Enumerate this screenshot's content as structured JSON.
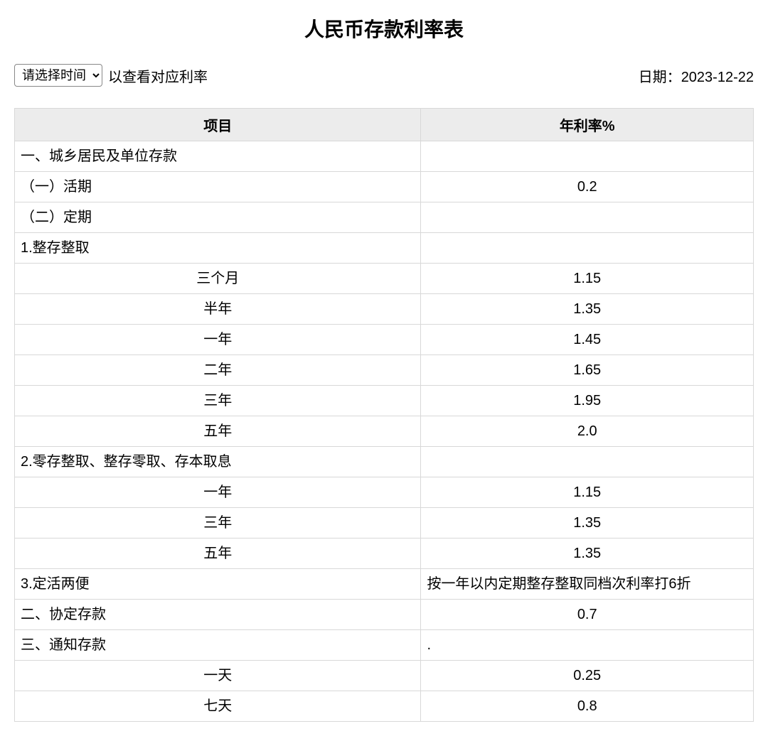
{
  "title": "人民币存款利率表",
  "selector": {
    "placeholder": "请选择时间"
  },
  "hint": "以查看对应利率",
  "date_label": "日期：",
  "date_value": "2023-12-22",
  "table": {
    "columns": [
      "项目",
      "年利率%"
    ],
    "rows": [
      {
        "item": "一、城乡居民及单位存款",
        "rate": "",
        "item_align": "left",
        "rate_align": "left"
      },
      {
        "item": "（一）活期",
        "rate": "0.2",
        "item_align": "left",
        "rate_align": "center"
      },
      {
        "item": "（二）定期",
        "rate": "",
        "item_align": "left",
        "rate_align": "left"
      },
      {
        "item": "1.整存整取",
        "rate": "",
        "item_align": "left",
        "rate_align": "left"
      },
      {
        "item": "三个月",
        "rate": "1.15",
        "item_align": "center",
        "rate_align": "center"
      },
      {
        "item": "半年",
        "rate": "1.35",
        "item_align": "center",
        "rate_align": "center"
      },
      {
        "item": "一年",
        "rate": "1.45",
        "item_align": "center",
        "rate_align": "center"
      },
      {
        "item": "二年",
        "rate": "1.65",
        "item_align": "center",
        "rate_align": "center"
      },
      {
        "item": "三年",
        "rate": "1.95",
        "item_align": "center",
        "rate_align": "center"
      },
      {
        "item": "五年",
        "rate": "2.0",
        "item_align": "center",
        "rate_align": "center"
      },
      {
        "item": "2.零存整取、整存零取、存本取息",
        "rate": "",
        "item_align": "left",
        "rate_align": "left"
      },
      {
        "item": "一年",
        "rate": "1.15",
        "item_align": "center",
        "rate_align": "center"
      },
      {
        "item": "三年",
        "rate": "1.35",
        "item_align": "center",
        "rate_align": "center"
      },
      {
        "item": "五年",
        "rate": "1.35",
        "item_align": "center",
        "rate_align": "center"
      },
      {
        "item": "3.定活两便",
        "rate": "按一年以内定期整存整取同档次利率打6折",
        "item_align": "left",
        "rate_align": "left"
      },
      {
        "item": "二、协定存款",
        "rate": "0.7",
        "item_align": "left",
        "rate_align": "center"
      },
      {
        "item": "三、通知存款",
        "rate": ".",
        "item_align": "left",
        "rate_align": "left"
      },
      {
        "item": "一天",
        "rate": "0.25",
        "item_align": "center",
        "rate_align": "center"
      },
      {
        "item": "七天",
        "rate": "0.8",
        "item_align": "center",
        "rate_align": "center"
      }
    ]
  }
}
